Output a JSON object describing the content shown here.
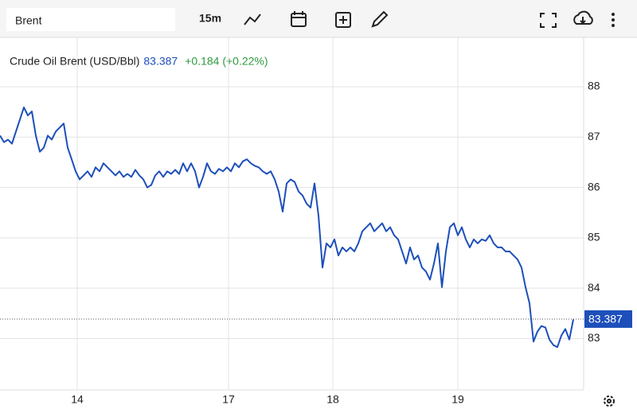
{
  "toolbar": {
    "symbol": "Brent",
    "interval": "15m"
  },
  "chart_data": {
    "type": "line",
    "title": "Crude Oil Brent (USD/Bbl)",
    "last_value": 83.387,
    "change_text": "+0.184 (+0.22%)",
    "x": [
      0,
      1,
      2,
      3,
      4,
      5,
      6,
      7,
      8,
      9,
      10,
      11,
      12,
      13,
      14,
      15,
      16,
      17,
      18,
      19,
      20,
      21,
      22,
      23,
      24,
      25,
      26,
      27,
      28,
      29,
      30,
      31,
      32,
      33,
      34,
      35,
      36,
      37,
      38,
      39,
      40,
      41,
      42,
      43,
      44,
      45,
      46,
      47,
      48,
      49,
      50,
      51,
      52,
      53,
      54,
      55,
      56,
      57,
      58,
      59,
      60,
      61,
      62,
      63,
      64,
      65,
      66,
      67,
      68,
      69,
      70,
      71,
      72,
      73,
      74,
      75,
      76,
      77,
      78,
      79,
      80,
      81,
      82,
      83,
      84,
      85,
      86,
      87,
      88,
      89,
      90,
      91,
      92,
      93,
      94,
      95,
      96,
      97,
      98,
      99,
      100,
      101,
      102,
      103,
      104,
      105,
      106,
      107,
      108,
      109,
      110,
      111,
      112,
      113,
      114,
      115,
      116,
      117,
      118,
      119,
      120,
      121,
      122,
      123,
      124,
      125,
      126,
      127,
      128,
      129,
      130,
      131,
      132,
      133,
      134,
      135,
      136,
      137,
      138,
      139,
      140,
      141,
      142,
      143,
      144
    ],
    "series": [
      {
        "color": "#1d4fba",
        "values": [
          87.03,
          86.9,
          86.95,
          86.87,
          87.11,
          87.35,
          87.59,
          87.43,
          87.51,
          87.03,
          86.71,
          86.79,
          87.03,
          86.95,
          87.11,
          87.19,
          87.27,
          86.79,
          86.56,
          86.32,
          86.16,
          86.24,
          86.32,
          86.21,
          86.4,
          86.32,
          86.48,
          86.4,
          86.32,
          86.24,
          86.32,
          86.21,
          86.27,
          86.21,
          86.35,
          86.24,
          86.16,
          86.0,
          86.05,
          86.24,
          86.32,
          86.21,
          86.32,
          86.27,
          86.35,
          86.27,
          86.48,
          86.32,
          86.48,
          86.32,
          86.0,
          86.21,
          86.48,
          86.32,
          86.27,
          86.37,
          86.32,
          86.4,
          86.32,
          86.48,
          86.4,
          86.52,
          86.56,
          86.48,
          86.43,
          86.4,
          86.32,
          86.27,
          86.32,
          86.16,
          85.92,
          85.52,
          86.08,
          86.16,
          86.11,
          85.92,
          85.84,
          85.68,
          85.6,
          86.08,
          85.44,
          84.41,
          84.89,
          84.81,
          84.97,
          84.65,
          84.81,
          84.73,
          84.81,
          84.73,
          84.89,
          85.13,
          85.21,
          85.29,
          85.13,
          85.21,
          85.29,
          85.13,
          85.21,
          85.05,
          84.97,
          84.73,
          84.49,
          84.81,
          84.57,
          84.65,
          84.41,
          84.33,
          84.17,
          84.49,
          84.89,
          84.02,
          84.73,
          85.21,
          85.29,
          85.05,
          85.21,
          84.97,
          84.81,
          84.97,
          84.89,
          84.97,
          84.94,
          85.05,
          84.89,
          84.81,
          84.81,
          84.73,
          84.73,
          84.65,
          84.57,
          84.41,
          84.02,
          83.7,
          82.94,
          83.14,
          83.25,
          83.22,
          82.98,
          82.87,
          82.83,
          83.06,
          83.19,
          82.98,
          83.38
        ]
      }
    ],
    "xlim": [
      0,
      146.6
    ],
    "xticks": [
      {
        "value": 19.4,
        "label": "14"
      },
      {
        "value": 57.4,
        "label": "17"
      },
      {
        "value": 83.6,
        "label": "18"
      },
      {
        "value": 115,
        "label": "19"
      }
    ],
    "ylim": [
      81.98,
      88.98
    ],
    "yticks": [
      83,
      84,
      85,
      86,
      87,
      88
    ],
    "grid": true
  }
}
